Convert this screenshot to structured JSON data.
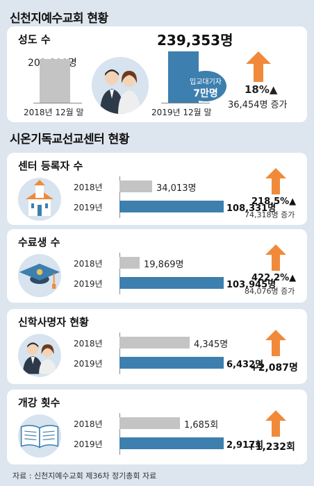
{
  "church": {
    "title": "신천지예수교회 현황",
    "panel_title": "성도 수",
    "before": {
      "value_label": "202,899명",
      "date_label": "2018년 12월 말",
      "value": 202899
    },
    "after": {
      "value_label": "239,353명",
      "date_label": "2019년 12월 말",
      "value": 239353
    },
    "badge_line1": "입교대기자",
    "badge_line2": "7만명",
    "pct": "18%▲",
    "increase": "36,454명 증가"
  },
  "centers": {
    "title": "시온기독교선교센터 현황",
    "panels": [
      {
        "title": "센터 등록자 수",
        "y2018_label": "2018년",
        "y2019_label": "2019년",
        "v2018_label": "34,013명",
        "v2019_label": "108,331명",
        "pct": "218.5%▲",
        "increase": "74,318명 증가",
        "change": ""
      },
      {
        "title": "수료생 수",
        "y2018_label": "2018년",
        "y2019_label": "2019년",
        "v2018_label": "19,869명",
        "v2019_label": "103,945명",
        "pct": "422.2%▲",
        "increase": "84,076명 증가",
        "change": ""
      },
      {
        "title": "신학사명자 현황",
        "y2018_label": "2018년",
        "y2019_label": "2019년",
        "v2018_label": "4,345명",
        "v2019_label": "6,432명",
        "pct": "",
        "increase": "",
        "change": "+2,087명"
      },
      {
        "title": "개강 횟수",
        "y2018_label": "2018년",
        "y2019_label": "2019년",
        "v2018_label": "1,685회",
        "v2019_label": "2,917회",
        "pct": "",
        "increase": "",
        "change": "+1,232회"
      }
    ]
  },
  "source": "자료 : 신천지예수교회 제36차 정기총회 자료",
  "colors": {
    "bar_2018": "#c4c4c4",
    "bar_2019": "#3d7fae",
    "arrow": "#f08a3a",
    "badge": "#3d7fae"
  },
  "icons": [
    "church-building-icon",
    "graduation-cap-icon",
    "two-people-icon",
    "open-book-icon"
  ],
  "chart_data": [
    {
      "type": "bar",
      "title": "성도 수",
      "categories": [
        "2018년 12월 말",
        "2019년 12월 말"
      ],
      "values": [
        202899,
        239353
      ]
    },
    {
      "type": "bar",
      "title": "센터 등록자 수",
      "categories": [
        "2018년",
        "2019년"
      ],
      "values": [
        34013,
        108331
      ]
    },
    {
      "type": "bar",
      "title": "수료생 수",
      "categories": [
        "2018년",
        "2019년"
      ],
      "values": [
        19869,
        103945
      ]
    },
    {
      "type": "bar",
      "title": "신학사명자 현황",
      "categories": [
        "2018년",
        "2019년"
      ],
      "values": [
        4345,
        6432
      ]
    },
    {
      "type": "bar",
      "title": "개강 횟수",
      "categories": [
        "2018년",
        "2019년"
      ],
      "values": [
        1685,
        2917
      ]
    }
  ]
}
